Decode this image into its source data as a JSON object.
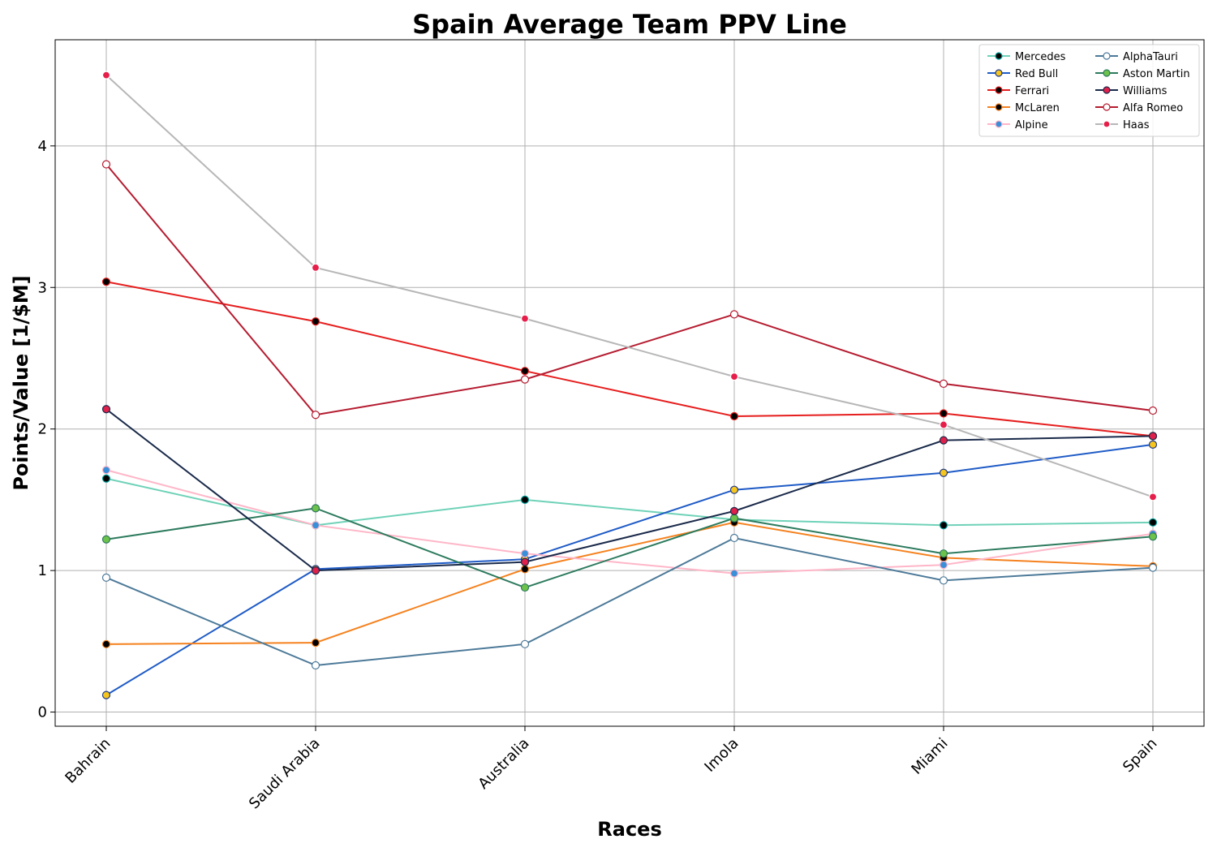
{
  "chart_data": {
    "type": "line",
    "title": "Spain Average Team PPV Line",
    "xlabel": "Races",
    "ylabel": "Points/Value [1/$M]",
    "categories": [
      "Bahrain",
      "Saudi Arabia",
      "Australia",
      "Imola",
      "Miami",
      "Spain"
    ],
    "ylim": [
      -0.1,
      4.75
    ],
    "yticks": [
      0,
      1,
      2,
      3,
      4
    ],
    "grid": true,
    "legend_position": "top-right",
    "series": [
      {
        "name": "Mercedes",
        "line_color": "#6fd2b8",
        "marker_color": "#000000",
        "marker_edge": "#00a19c",
        "values": [
          1.65,
          1.32,
          1.5,
          1.36,
          1.32,
          1.34
        ]
      },
      {
        "name": "Red Bull",
        "line_color": "#1f5bc6",
        "marker_color": "#f7c61d",
        "marker_edge": "#1f3a8a",
        "values": [
          0.12,
          1.01,
          1.08,
          1.57,
          1.69,
          1.89
        ]
      },
      {
        "name": "Ferrari",
        "line_color": "#e61e1e",
        "marker_color": "#000000",
        "marker_edge": "#e61e1e",
        "values": [
          3.04,
          2.76,
          2.41,
          2.09,
          2.11,
          1.95
        ]
      },
      {
        "name": "McLaren",
        "line_color": "#f5821f",
        "marker_color": "#000000",
        "marker_edge": "#f5821f",
        "values": [
          0.48,
          0.49,
          1.01,
          1.34,
          1.09,
          1.03
        ]
      },
      {
        "name": "Alpine",
        "line_color": "#ffb6c8",
        "marker_color": "#3a8fd9",
        "marker_edge": "#ffb6c8",
        "values": [
          1.71,
          1.32,
          1.12,
          0.98,
          1.04,
          1.26
        ]
      },
      {
        "name": "AlphaTauri",
        "line_color": "#4d7a99",
        "marker_color": "#ffffff",
        "marker_edge": "#4d7a99",
        "values": [
          0.95,
          0.33,
          0.48,
          1.23,
          0.93,
          1.02
        ]
      },
      {
        "name": "Aston Martin",
        "line_color": "#2d7b5e",
        "marker_color": "#6cc24a",
        "marker_edge": "#2d7b5e",
        "values": [
          1.22,
          1.44,
          0.88,
          1.37,
          1.12,
          1.24
        ]
      },
      {
        "name": "Williams",
        "line_color": "#1a2a4a",
        "marker_color": "#e0204a",
        "marker_edge": "#1a2a4a",
        "values": [
          2.14,
          1.0,
          1.06,
          1.42,
          1.92,
          1.95
        ]
      },
      {
        "name": "Alfa Romeo",
        "line_color": "#b51c30",
        "marker_color": "#ffffff",
        "marker_edge": "#b51c30",
        "values": [
          3.87,
          2.1,
          2.35,
          2.81,
          2.32,
          2.13
        ]
      },
      {
        "name": "Haas",
        "line_color": "#b7b7b7",
        "marker_color": "#e61e4a",
        "marker_edge": "#ffffff",
        "values": [
          4.5,
          3.14,
          2.78,
          2.37,
          2.03,
          1.52
        ]
      }
    ]
  }
}
